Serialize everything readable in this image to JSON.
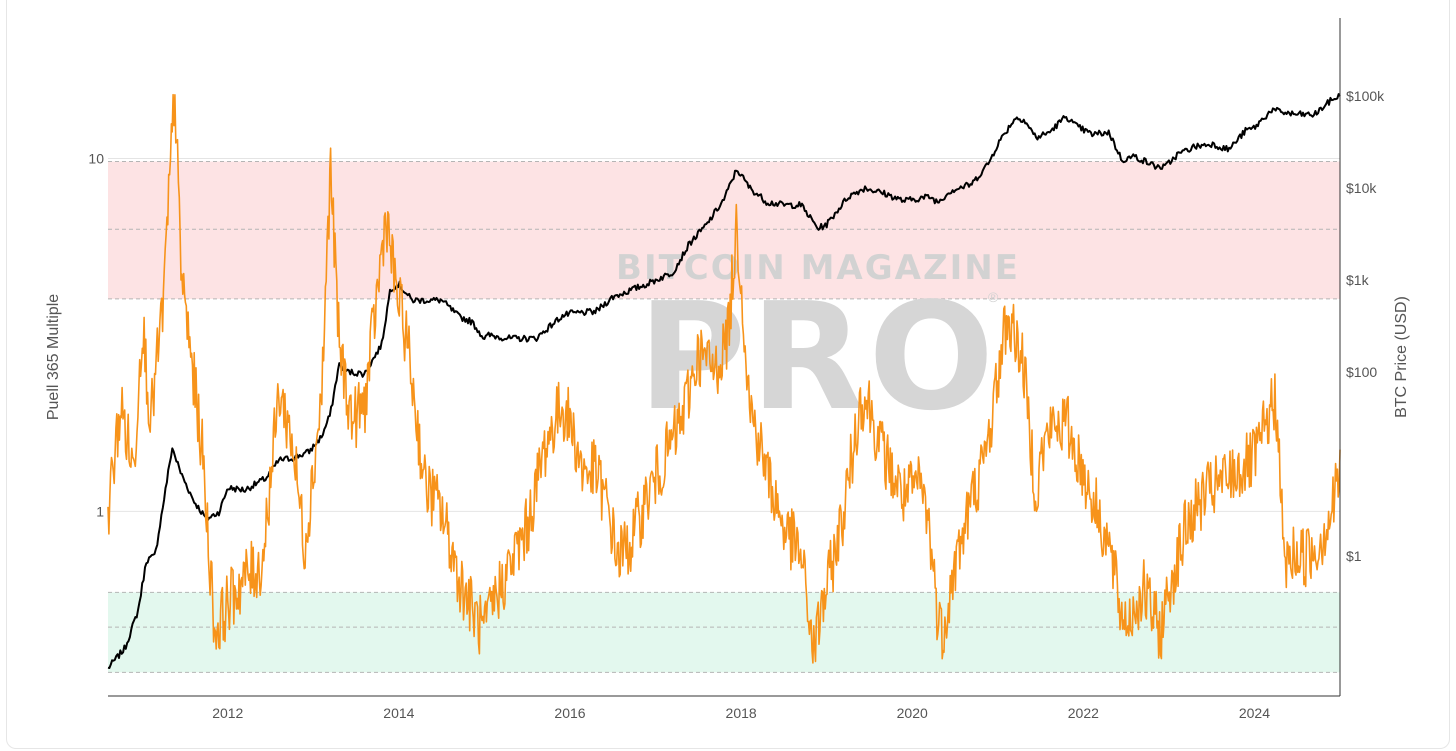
{
  "chart_data": {
    "type": "line",
    "watermark": {
      "top": "BITCOIN MAGAZINE",
      "main": "PRO",
      "mark": "®"
    },
    "x_axis": {
      "range": [
        2010.6,
        2025.0
      ],
      "tick_labels": [
        "2012",
        "2014",
        "2016",
        "2018",
        "2020",
        "2022",
        "2024"
      ],
      "ticks": [
        2012,
        2014,
        2016,
        2018,
        2020,
        2022,
        2024
      ]
    },
    "y_left": {
      "label": "Puell 365 Multiple",
      "scale": "log",
      "range": [
        0.3,
        25
      ],
      "tick_labels": [
        "1",
        "10"
      ],
      "ticks": [
        1,
        10
      ]
    },
    "y_right": {
      "label": "BTC Price (USD)",
      "scale": "log",
      "range": [
        0.03,
        700000
      ],
      "tick_labels": [
        "$1",
        "$100",
        "$1k",
        "$10k",
        "$100k"
      ],
      "ticks": [
        1,
        100,
        1000,
        10000,
        100000
      ]
    },
    "bands": [
      {
        "zone": "high",
        "from": 4.0,
        "to": 9.8,
        "color": "#fde3e4",
        "lines": [
          4.0,
          6.3,
          9.8
        ]
      },
      {
        "zone": "low",
        "from": 0.35,
        "to": 0.59,
        "color": "#e3f8ee",
        "lines": [
          0.35,
          0.47,
          0.59
        ]
      }
    ],
    "series": [
      {
        "axis": "left",
        "color": "#f7931a",
        "x": [
          2010.6,
          2010.75,
          2010.9,
          2011.0,
          2011.1,
          2011.25,
          2011.38,
          2011.45,
          2011.55,
          2011.7,
          2011.85,
          2012.0,
          2012.2,
          2012.4,
          2012.6,
          2012.75,
          2012.9,
          2013.0,
          2013.1,
          2013.2,
          2013.3,
          2013.45,
          2013.6,
          2013.75,
          2013.85,
          2013.95,
          2014.1,
          2014.3,
          2014.5,
          2014.7,
          2014.9,
          2015.0,
          2015.1,
          2015.3,
          2015.5,
          2015.7,
          2015.9,
          2016.0,
          2016.15,
          2016.3,
          2016.45,
          2016.55,
          2016.7,
          2016.9,
          2017.1,
          2017.3,
          2017.5,
          2017.7,
          2017.85,
          2017.95,
          2018.0,
          2018.1,
          2018.3,
          2018.5,
          2018.7,
          2018.85,
          2018.95,
          2019.0,
          2019.2,
          2019.4,
          2019.5,
          2019.6,
          2019.75,
          2019.9,
          2020.1,
          2020.2,
          2020.3,
          2020.35,
          2020.5,
          2020.7,
          2020.85,
          2020.95,
          2021.1,
          2021.2,
          2021.3,
          2021.45,
          2021.5,
          2021.6,
          2021.8,
          2021.9,
          2022.1,
          2022.3,
          2022.45,
          2022.55,
          2022.7,
          2022.9,
          2023.0,
          2023.2,
          2023.4,
          2023.6,
          2023.8,
          2024.0,
          2024.15,
          2024.25,
          2024.35,
          2024.45,
          2024.6,
          2024.75,
          2024.9,
          2025.0
        ],
        "y": [
          1.0,
          2.0,
          1.3,
          3.5,
          1.8,
          4.0,
          16.0,
          5.0,
          3.0,
          1.5,
          0.45,
          0.55,
          0.65,
          0.7,
          2.2,
          1.6,
          0.8,
          1.3,
          2.2,
          9.5,
          3.0,
          1.8,
          2.0,
          4.2,
          7.0,
          4.5,
          3.0,
          1.2,
          1.0,
          0.65,
          0.5,
          0.45,
          0.55,
          0.7,
          0.9,
          1.5,
          2.0,
          1.8,
          1.3,
          1.3,
          1.0,
          0.75,
          0.8,
          1.1,
          1.4,
          1.8,
          2.8,
          2.5,
          3.2,
          6.5,
          4.5,
          2.0,
          1.3,
          0.9,
          0.75,
          0.4,
          0.55,
          0.6,
          1.0,
          2.1,
          2.0,
          1.6,
          1.3,
          1.1,
          1.2,
          0.9,
          0.5,
          0.45,
          0.7,
          1.1,
          1.4,
          2.0,
          3.5,
          3.2,
          2.6,
          1.1,
          1.4,
          1.7,
          1.8,
          1.5,
          1.1,
          0.8,
          0.5,
          0.5,
          0.6,
          0.45,
          0.6,
          0.9,
          1.1,
          1.2,
          1.3,
          1.4,
          1.8,
          2.1,
          0.7,
          0.75,
          0.75,
          0.8,
          1.0,
          1.3
        ]
      },
      {
        "axis": "right",
        "color": "#000000",
        "x": [
          2010.6,
          2010.8,
          2010.95,
          2011.05,
          2011.15,
          2011.35,
          2011.45,
          2011.6,
          2011.75,
          2011.9,
          2012.0,
          2012.2,
          2012.45,
          2012.6,
          2012.75,
          2012.95,
          2013.1,
          2013.2,
          2013.3,
          2013.4,
          2013.6,
          2013.8,
          2013.9,
          2014.0,
          2014.15,
          2014.3,
          2014.5,
          2014.7,
          2014.85,
          2015.0,
          2015.05,
          2015.3,
          2015.6,
          2015.9,
          2016.0,
          2016.3,
          2016.5,
          2016.9,
          2017.2,
          2017.4,
          2017.6,
          2017.8,
          2017.95,
          2018.1,
          2018.3,
          2018.5,
          2018.7,
          2018.9,
          2019.0,
          2019.25,
          2019.45,
          2019.7,
          2019.9,
          2020.2,
          2020.3,
          2020.45,
          2020.7,
          2020.9,
          2021.0,
          2021.2,
          2021.3,
          2021.45,
          2021.6,
          2021.8,
          2021.9,
          2022.1,
          2022.3,
          2022.45,
          2022.6,
          2022.85,
          2022.95,
          2023.1,
          2023.3,
          2023.5,
          2023.7,
          2023.9,
          2024.0,
          2024.2,
          2024.45,
          2024.7,
          2024.9,
          2025.0
        ],
        "y": [
          0.06,
          0.1,
          0.25,
          0.9,
          1.0,
          15.0,
          8.0,
          4.0,
          2.5,
          3.0,
          5.5,
          5.2,
          7.0,
          11.0,
          11.5,
          13.5,
          20.0,
          35.0,
          120.0,
          100.0,
          95.0,
          200.0,
          800.0,
          900.0,
          600.0,
          600.0,
          600.0,
          400.0,
          350.0,
          230.0,
          250.0,
          230.0,
          230.0,
          400.0,
          430.0,
          450.0,
          650.0,
          900.0,
          1200.0,
          2500.0,
          4000.0,
          7500.0,
          16000.0,
          10000.0,
          7000.0,
          6500.0,
          6500.0,
          3600.0,
          4000.0,
          8000.0,
          10000.0,
          8500.0,
          7200.0,
          8000.0,
          7000.0,
          9300.0,
          11000.0,
          19000.0,
          30000.0,
          57000.0,
          56000.0,
          35000.0,
          40000.0,
          60000.0,
          48000.0,
          38000.0,
          40000.0,
          20000.0,
          22000.0,
          17000.0,
          16700.0,
          23000.0,
          28000.0,
          30000.0,
          26000.0,
          42000.0,
          45000.0,
          70000.0,
          63000.0,
          62000.0,
          90000.0,
          100000.0
        ]
      }
    ]
  }
}
